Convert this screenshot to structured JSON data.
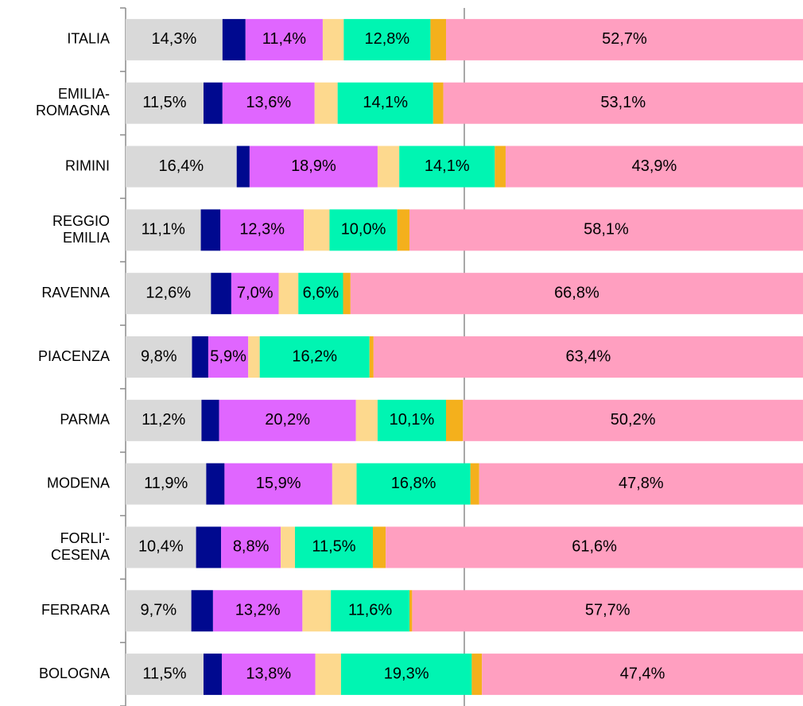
{
  "chart_data": {
    "type": "stacked-bar-horizontal",
    "categories": [
      "ITALIA",
      "EMILIA-\nROMAGNA",
      "RIMINI",
      "REGGIO\nEMILIA",
      "RAVENNA",
      "PIACENZA",
      "PARMA",
      "MODENA",
      "FORLI'-\nCESENA",
      "FERRARA",
      "BOLOGNA"
    ],
    "xlim": [
      0,
      100
    ],
    "gridlines": [
      50
    ],
    "series": [
      {
        "color": "#d9d9d9",
        "values": [
          14.3,
          11.5,
          16.4,
          11.1,
          12.6,
          9.8,
          11.2,
          11.9,
          10.4,
          9.7,
          11.5
        ],
        "value_labels": [
          "14,3%",
          "11,5%",
          "16,4%",
          "11,1%",
          "12,6%",
          "9,8%",
          "11,2%",
          "11,9%",
          "10,4%",
          "9,7%",
          "11,5%"
        ]
      },
      {
        "color": "#00098f",
        "values": [
          3.4,
          2.8,
          1.9,
          2.9,
          3.0,
          2.4,
          2.6,
          2.7,
          3.7,
          3.2,
          2.7
        ]
      },
      {
        "color": "#e066ff",
        "values": [
          11.4,
          13.6,
          18.9,
          12.3,
          7.0,
          5.9,
          20.2,
          15.9,
          8.8,
          13.2,
          13.8
        ],
        "value_labels": [
          "11,4%",
          "13,6%",
          "18,9%",
          "12,3%",
          "7,0%",
          "5,9%",
          "20,2%",
          "15,9%",
          "8,8%",
          "13,2%",
          "13,8%"
        ]
      },
      {
        "color": "#fdd98e",
        "values": [
          3.1,
          3.4,
          3.2,
          3.8,
          2.9,
          1.7,
          3.2,
          3.6,
          2.1,
          4.2,
          3.8
        ]
      },
      {
        "color": "#00f5b2",
        "values": [
          12.8,
          14.1,
          14.1,
          10.0,
          6.6,
          16.2,
          10.1,
          16.8,
          11.5,
          11.6,
          19.3
        ],
        "value_labels": [
          "12,8%",
          "14,1%",
          "14,1%",
          "10,0%",
          "6,6%",
          "16,2%",
          "10,1%",
          "16,8%",
          "11,5%",
          "11,6%",
          "19,3%"
        ]
      },
      {
        "color": "#f4b01c",
        "values": [
          2.3,
          1.5,
          1.6,
          1.8,
          1.1,
          0.6,
          2.5,
          1.3,
          1.9,
          0.4,
          1.5
        ]
      },
      {
        "color": "#ff9fc0",
        "values": [
          52.7,
          53.1,
          43.9,
          58.1,
          66.8,
          63.4,
          50.2,
          47.8,
          61.6,
          57.7,
          47.4
        ],
        "value_labels": [
          "52,7%",
          "53,1%",
          "43,9%",
          "58,1%",
          "66,8%",
          "63,4%",
          "50,2%",
          "47,8%",
          "61,6%",
          "57,7%",
          "47,4%"
        ]
      }
    ]
  }
}
